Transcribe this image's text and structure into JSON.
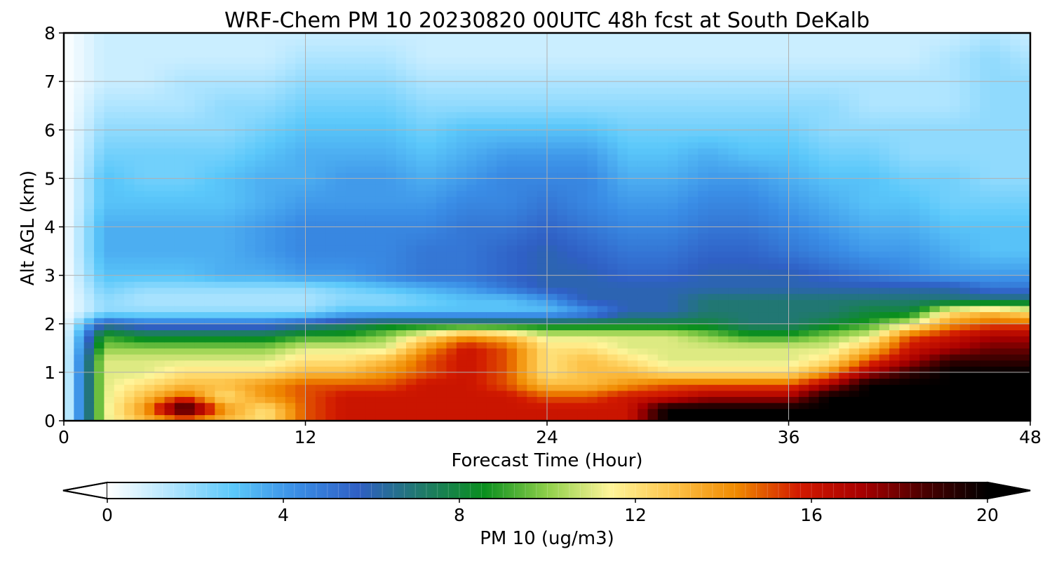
{
  "chart_data": {
    "type": "heatmap",
    "title": "WRF-Chem PM 10  20230820 00UTC 48h fcst at South DeKalb",
    "xlabel": "Forecast Time (Hour)",
    "ylabel": "Alt AGL (km)",
    "xlim": [
      0,
      48
    ],
    "ylim": [
      0,
      8
    ],
    "x_ticks": [
      0,
      12,
      24,
      36,
      48
    ],
    "y_ticks": [
      0,
      1,
      2,
      3,
      4,
      5,
      6,
      7,
      8
    ],
    "grid": true,
    "x": [
      0,
      2,
      4,
      6,
      8,
      10,
      12,
      14,
      16,
      18,
      20,
      22,
      24,
      26,
      28,
      30,
      32,
      34,
      36,
      38,
      40,
      42,
      44,
      46,
      48
    ],
    "y": [
      0,
      0.25,
      0.5,
      0.75,
      1,
      1.25,
      1.5,
      1.75,
      2,
      2.25,
      2.5,
      2.75,
      3,
      3.5,
      4,
      4.5,
      5,
      5.5,
      6,
      6.5,
      7,
      7.5,
      8
    ],
    "z_rows": [
      [
        0,
        11,
        13,
        14,
        13,
        12,
        15,
        16,
        16,
        16,
        16,
        16,
        16,
        16,
        16,
        20,
        20,
        20,
        20,
        20,
        20,
        20,
        20,
        20,
        20
      ],
      [
        0,
        11,
        14,
        20,
        14,
        12,
        15,
        16,
        16,
        16,
        16,
        16,
        16,
        16,
        16,
        20,
        20,
        20,
        20,
        20,
        20,
        20,
        20,
        20,
        20
      ],
      [
        0,
        11,
        13,
        15,
        12,
        14,
        15,
        16,
        16,
        16,
        16,
        16,
        15,
        15,
        16,
        16,
        17,
        17,
        17,
        20,
        20,
        20,
        20,
        20,
        20
      ],
      [
        0,
        11,
        12,
        13,
        13,
        14,
        15,
        15,
        15,
        16,
        16,
        15,
        13,
        13,
        14,
        15,
        15,
        15,
        15,
        17,
        20,
        20,
        20,
        20,
        20
      ],
      [
        0,
        11,
        11,
        12,
        12,
        12,
        13,
        13,
        14,
        15,
        16,
        15,
        12,
        13,
        13,
        12,
        12,
        12,
        12,
        14,
        17,
        19,
        20,
        20,
        20
      ],
      [
        0,
        11,
        11,
        11,
        11,
        11,
        12,
        12,
        13,
        15,
        16,
        15,
        12,
        13,
        12,
        11,
        11,
        11,
        11,
        12,
        15,
        17,
        19,
        19,
        19
      ],
      [
        0,
        10,
        10,
        10,
        10,
        10,
        11,
        11,
        11,
        14,
        16,
        15,
        12,
        12,
        11,
        11,
        11,
        11,
        11,
        11,
        13,
        16,
        17,
        18,
        18
      ],
      [
        0,
        9,
        8,
        8,
        8,
        8,
        9,
        9,
        10,
        12,
        14,
        13,
        11,
        11,
        11,
        11,
        10,
        9,
        9,
        10,
        11,
        15,
        16,
        17,
        17
      ],
      [
        0,
        6,
        5,
        5,
        5,
        5,
        6,
        7,
        8,
        8,
        8,
        8,
        8,
        8,
        8,
        8,
        8,
        7,
        7,
        8,
        9,
        11,
        14,
        15,
        15
      ],
      [
        0,
        2,
        2,
        2,
        2,
        2,
        2,
        3,
        3,
        3,
        3,
        3,
        3,
        4,
        6,
        6,
        7,
        7,
        7,
        7,
        8,
        8,
        12,
        13,
        12
      ],
      [
        0,
        2,
        1.5,
        1.5,
        1.5,
        1.5,
        1.5,
        2,
        2,
        2.5,
        3,
        3,
        4,
        6,
        6,
        6,
        7,
        7,
        7,
        7,
        7,
        7,
        7,
        7,
        7
      ],
      [
        0,
        2.5,
        2,
        2,
        2,
        2,
        2,
        2.5,
        3,
        3.5,
        4,
        5,
        6,
        6,
        6,
        6,
        6,
        6,
        6,
        6,
        6,
        6,
        6,
        5,
        5
      ],
      [
        0,
        3,
        3,
        3,
        3.5,
        3.5,
        4,
        4,
        4.5,
        5,
        5,
        5.5,
        6,
        6,
        5.5,
        5.5,
        6,
        6,
        6,
        5.5,
        5,
        4.5,
        4,
        4,
        4
      ],
      [
        0,
        3.5,
        3.5,
        3.5,
        3.5,
        4,
        4.5,
        4.5,
        4.5,
        5,
        5,
        5.5,
        6,
        5.5,
        5,
        5,
        5.5,
        5.5,
        5,
        4.5,
        4,
        4,
        3.5,
        3,
        3
      ],
      [
        0,
        3.5,
        3.5,
        3.5,
        3.5,
        4,
        4.5,
        4.5,
        4.5,
        4.5,
        5,
        5,
        5.5,
        5,
        4.5,
        4.5,
        5,
        5,
        4.5,
        4,
        3.5,
        3.5,
        3,
        3,
        3
      ],
      [
        0,
        3,
        3,
        3,
        3,
        3.5,
        4,
        4,
        4,
        4,
        4.5,
        4.5,
        5,
        4.5,
        4,
        4,
        4.5,
        4.5,
        4,
        3.5,
        3,
        3,
        2.5,
        2.5,
        2.5
      ],
      [
        0,
        3,
        2.5,
        2.5,
        3,
        3.5,
        3.5,
        4,
        4,
        3.5,
        4,
        4.5,
        4.5,
        4.5,
        3.5,
        3.5,
        4,
        4,
        3.5,
        3,
        3,
        2.5,
        2.5,
        2,
        2
      ],
      [
        0,
        2.5,
        2.5,
        2.5,
        2.5,
        3,
        3.5,
        3.5,
        3.5,
        3,
        3.5,
        4,
        4,
        4,
        3,
        3,
        3.5,
        3,
        3,
        2.5,
        2.5,
        2,
        2,
        2,
        2
      ],
      [
        0,
        2,
        2,
        2,
        2,
        2.5,
        3,
        3,
        3,
        2.5,
        3,
        3,
        3,
        3,
        2.5,
        2.5,
        2.5,
        2.5,
        2.5,
        2,
        2,
        2,
        2,
        2,
        2
      ],
      [
        0,
        1.5,
        1.5,
        1.5,
        2,
        2,
        2.5,
        2.5,
        2.5,
        2,
        2,
        2,
        2,
        2,
        2,
        2,
        2,
        2,
        2,
        2,
        1.5,
        1.5,
        1.5,
        2,
        2
      ],
      [
        0,
        1,
        1,
        1.5,
        1.5,
        1.5,
        2,
        2,
        2,
        1.5,
        1.5,
        1.5,
        1.5,
        1.5,
        1.5,
        1.5,
        1.5,
        1.5,
        1.5,
        1.5,
        1.5,
        1.5,
        1.5,
        2,
        2
      ],
      [
        0,
        1,
        1,
        1,
        1,
        1,
        1.5,
        1.5,
        1.5,
        1,
        1,
        1,
        1,
        1,
        1,
        1,
        1,
        1,
        1,
        1,
        1,
        1,
        1.5,
        2,
        1.5
      ],
      [
        0,
        1,
        1,
        1,
        1,
        1,
        1,
        1,
        1,
        1,
        1,
        1,
        1,
        1,
        1,
        1,
        1,
        1,
        1,
        1,
        1,
        1,
        1,
        1.5,
        1
      ]
    ],
    "colorbar": {
      "label": "PM 10  (ug/m3)",
      "min": 0,
      "max": 20,
      "ticks": [
        0,
        4,
        8,
        12,
        16,
        20
      ],
      "extend": "both",
      "colors": [
        "#ffffff",
        "#b3e6ff",
        "#5bc8fa",
        "#3a8ee6",
        "#2f5fc4",
        "#1f7a6a",
        "#0a8f1e",
        "#8fd04a",
        "#fff59a",
        "#fdc349",
        "#f08a00",
        "#d21a00",
        "#a80000",
        "#4a0000",
        "#000000"
      ]
    }
  }
}
